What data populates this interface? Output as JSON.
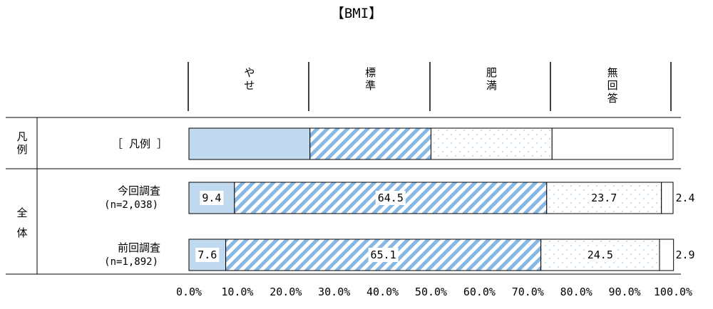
{
  "chart_data": {
    "type": "bar",
    "orientation": "horizontal",
    "stacked": true,
    "title": "【BMI】",
    "categories_header": [
      {
        "label": "やせ",
        "lines": [
          "や",
          "せ"
        ]
      },
      {
        "label": "標準",
        "lines": [
          "標",
          "準"
        ]
      },
      {
        "label": "肥満",
        "lines": [
          "肥",
          "満"
        ]
      },
      {
        "label": "無回答",
        "lines": [
          "無",
          "回",
          "答"
        ]
      }
    ],
    "legend_row": {
      "group": "凡例",
      "group_lines": [
        "凡",
        "例"
      ],
      "label": "［ 凡例 ］",
      "values": [
        25,
        25,
        25,
        25
      ]
    },
    "group": {
      "label": "全体",
      "lines": [
        "全",
        "体"
      ]
    },
    "rows": [
      {
        "label": "今回調査",
        "sublabel": "(n=2,038)",
        "values": [
          9.4,
          64.5,
          23.7,
          2.4
        ],
        "labels": [
          "9.4",
          "64.5",
          "23.7",
          "2.4"
        ]
      },
      {
        "label": "前回調査",
        "sublabel": "(n=1,892)",
        "values": [
          7.6,
          65.1,
          24.5,
          2.9
        ],
        "labels": [
          "7.6",
          "65.1",
          "24.5",
          "2.9"
        ]
      }
    ],
    "xlim": [
      0,
      100
    ],
    "ticks": [
      "0.0%",
      "10.0%",
      "20.0%",
      "30.0%",
      "40.0%",
      "50.0%",
      "60.0%",
      "70.0%",
      "80.0%",
      "90.0%",
      "100.0%"
    ],
    "grid": false,
    "colors": {
      "yase": "#c0d9ee",
      "hyojun": "#86b8e3",
      "himan": "#a8c8e5",
      "mukaito": "#ffffff",
      "border": "#000000"
    }
  }
}
